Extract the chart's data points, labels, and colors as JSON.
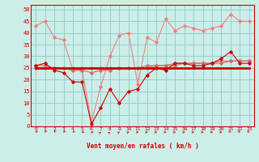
{
  "x": [
    0,
    1,
    2,
    3,
    4,
    5,
    6,
    7,
    8,
    9,
    10,
    11,
    12,
    13,
    14,
    15,
    16,
    17,
    18,
    19,
    20,
    21,
    22,
    23
  ],
  "line_rafales": [
    43,
    45,
    38,
    37,
    24,
    24,
    2,
    17,
    30,
    39,
    40,
    18,
    38,
    36,
    46,
    41,
    43,
    42,
    41,
    42,
    43,
    48,
    45,
    45
  ],
  "line_moyen": [
    26,
    27,
    24,
    23,
    19,
    19,
    1,
    8,
    16,
    10,
    15,
    16,
    22,
    25,
    24,
    27,
    27,
    26,
    26,
    27,
    29,
    32,
    27,
    27
  ],
  "line_avg_flat": [
    25,
    25,
    25,
    25,
    25,
    25,
    25,
    25,
    25,
    25,
    25,
    25,
    25,
    25,
    25,
    25,
    25,
    25,
    25,
    25,
    25,
    25,
    25,
    25
  ],
  "line_trend1": [
    25,
    25,
    25,
    25,
    25,
    25,
    25,
    25,
    25,
    25,
    25,
    25,
    25,
    26,
    26,
    26,
    27,
    27,
    27,
    27,
    27,
    28,
    28,
    28
  ],
  "line_trend2": [
    26,
    26,
    25,
    25,
    24,
    24,
    23,
    24,
    24,
    25,
    25,
    25,
    26,
    26,
    26,
    27,
    27,
    27,
    27,
    27,
    28,
    28,
    28,
    28
  ],
  "color_rafales": "#f08080",
  "color_moyen": "#cc0000",
  "color_avg_flat": "#cc0000",
  "color_trend1": "#dd6666",
  "color_trend2": "#dd6666",
  "bg_color": "#cceee8",
  "grid_color": "#99cccc",
  "xlabel": "Vent moyen/en rafales ( km/h )",
  "ylim": [
    0,
    52
  ],
  "xlim": [
    -0.5,
    23.5
  ],
  "yticks": [
    0,
    5,
    10,
    15,
    20,
    25,
    30,
    35,
    40,
    45,
    50
  ],
  "xticks": [
    0,
    1,
    2,
    3,
    4,
    5,
    6,
    7,
    8,
    9,
    10,
    11,
    12,
    13,
    14,
    15,
    16,
    17,
    18,
    19,
    20,
    21,
    22,
    23
  ],
  "wind_dirs": [
    225,
    210,
    210,
    225,
    225,
    240,
    270,
    45,
    45,
    60,
    75,
    90,
    90,
    90,
    90,
    90,
    90,
    90,
    90,
    90,
    90,
    135,
    135,
    135
  ]
}
